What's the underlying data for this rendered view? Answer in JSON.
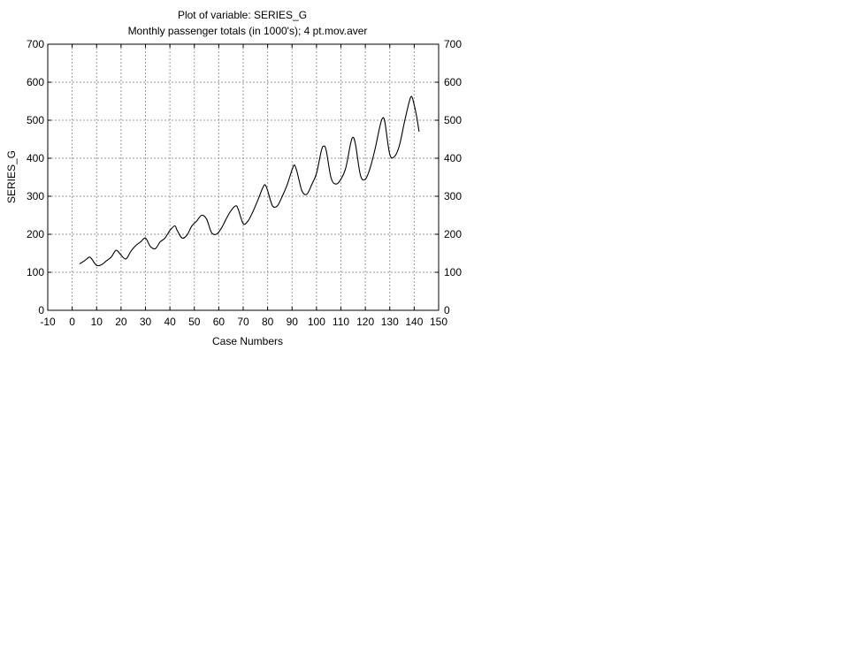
{
  "chart_data": {
    "type": "line",
    "title": "Plot of variable: SERIES_G",
    "subtitle": "Monthly passenger totals (in 1000's); 4 pt.mov.aver",
    "xlabel": "Case Numbers",
    "ylabel": "SERIES_G",
    "xlim": [
      -10,
      150
    ],
    "ylim": [
      0,
      700
    ],
    "xticks": [
      -10,
      0,
      10,
      20,
      30,
      40,
      50,
      60,
      70,
      80,
      90,
      100,
      110,
      120,
      130,
      140,
      150
    ],
    "yticks": [
      0,
      100,
      200,
      300,
      400,
      500,
      600,
      700
    ],
    "grid": true,
    "right_axis": true,
    "line_color": "#000000",
    "series": [
      {
        "x": [
          3,
          5,
          7,
          8,
          10,
          12,
          14,
          16,
          18,
          20,
          22,
          24,
          26,
          28,
          30,
          32,
          34,
          36,
          38,
          40,
          42,
          43,
          45,
          47,
          49,
          51,
          53,
          55,
          57,
          59,
          61,
          63,
          65,
          67,
          68,
          70,
          72,
          74,
          76,
          78,
          79,
          80,
          82,
          84,
          86,
          88,
          90,
          91,
          92,
          94,
          96,
          98,
          100,
          102,
          103,
          104,
          106,
          108,
          110,
          112,
          114,
          115,
          116,
          118,
          120,
          122,
          124,
          126,
          127,
          128,
          130,
          132,
          134,
          136,
          138,
          139,
          140,
          141,
          142
        ],
        "y": [
          122,
          130,
          140,
          135,
          118,
          120,
          130,
          140,
          158,
          145,
          135,
          155,
          170,
          180,
          190,
          168,
          162,
          180,
          190,
          210,
          222,
          210,
          190,
          198,
          222,
          235,
          250,
          240,
          205,
          200,
          215,
          240,
          262,
          275,
          265,
          228,
          235,
          260,
          290,
          322,
          330,
          315,
          275,
          275,
          300,
          330,
          370,
          382,
          365,
          315,
          305,
          330,
          360,
          420,
          432,
          420,
          348,
          332,
          345,
          375,
          440,
          455,
          435,
          355,
          345,
          375,
          425,
          485,
          505,
          495,
          410,
          405,
          435,
          495,
          550,
          562,
          540,
          510,
          470
        ]
      }
    ]
  }
}
